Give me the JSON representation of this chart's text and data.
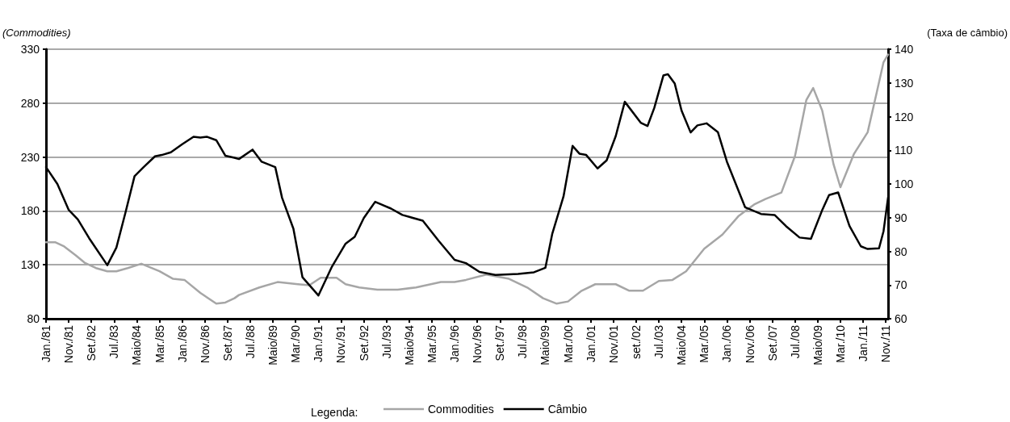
{
  "chart_data": {
    "type": "line",
    "ylabel": "(Commodities)",
    "y2label": "(Taxa de câmbio)",
    "legend_title": "Legenda:",
    "xlim": [
      "1981-01",
      "2011-12"
    ],
    "xticks": [
      {
        "value": "1981-01",
        "label": "Jan./81"
      },
      {
        "value": "1981-11",
        "label": "Nov./81"
      },
      {
        "value": "1982-09",
        "label": "Set./82"
      },
      {
        "value": "1983-07",
        "label": "Jul./83"
      },
      {
        "value": "1984-05",
        "label": "Maio/84"
      },
      {
        "value": "1985-03",
        "label": "Mar./85"
      },
      {
        "value": "1986-01",
        "label": "Jan./86"
      },
      {
        "value": "1986-11",
        "label": "Nov./86"
      },
      {
        "value": "1987-09",
        "label": "Set./87"
      },
      {
        "value": "1988-07",
        "label": "Jul./88"
      },
      {
        "value": "1989-05",
        "label": "Maio/89"
      },
      {
        "value": "1990-03",
        "label": "Mar./90"
      },
      {
        "value": "1991-01",
        "label": "Jan./91"
      },
      {
        "value": "1991-11",
        "label": "Nov./91"
      },
      {
        "value": "1992-09",
        "label": "Set./92"
      },
      {
        "value": "1993-07",
        "label": "Jul./93"
      },
      {
        "value": "1994-05",
        "label": "Maio/94"
      },
      {
        "value": "1995-03",
        "label": "Mar./95"
      },
      {
        "value": "1996-01",
        "label": "Jan./96"
      },
      {
        "value": "1996-11",
        "label": "Nov./96"
      },
      {
        "value": "1997-09",
        "label": "Set./97"
      },
      {
        "value": "1998-07",
        "label": "Jul./98"
      },
      {
        "value": "1999-05",
        "label": "Maio/99"
      },
      {
        "value": "2000-03",
        "label": "Mar./00"
      },
      {
        "value": "2001-01",
        "label": "Jan./01"
      },
      {
        "value": "2001-11",
        "label": "Nov./01"
      },
      {
        "value": "2002-09",
        "label": "set./02"
      },
      {
        "value": "2003-07",
        "label": "Jul./03"
      },
      {
        "value": "2004-05",
        "label": "Maio/04"
      },
      {
        "value": "2005-03",
        "label": "Mar./05"
      },
      {
        "value": "2006-01",
        "label": "Jan./06"
      },
      {
        "value": "2006-11",
        "label": "Nov./06"
      },
      {
        "value": "2007-09",
        "label": "Set./07"
      },
      {
        "value": "2008-07",
        "label": "Jul./08"
      },
      {
        "value": "2009-05",
        "label": "Maio/09"
      },
      {
        "value": "2010-03",
        "label": "Mar./10"
      },
      {
        "value": "2011-01",
        "label": "Jan./11"
      },
      {
        "value": "2011-11",
        "label": "Nov./11"
      }
    ],
    "ylim": [
      80,
      330
    ],
    "yticks": [
      80,
      130,
      180,
      230,
      280,
      330
    ],
    "y2lim": [
      60,
      140
    ],
    "y2ticks": [
      60,
      70,
      80,
      90,
      100,
      110,
      120,
      130,
      140
    ],
    "grid": "y",
    "legend": "bottom",
    "line_style": "solid",
    "series": [
      {
        "name": "Commodities",
        "color": "#a6a6a6",
        "x": [
          "1981-01",
          "1981-05",
          "1981-09",
          "1982-02",
          "1982-06",
          "1982-11",
          "1983-04",
          "1983-08",
          "1984-01",
          "1984-07",
          "1985-03",
          "1985-09",
          "1986-02",
          "1986-09",
          "1987-04",
          "1987-08",
          "1987-12",
          "1988-02",
          "1988-11",
          "1989-07",
          "1990-04",
          "1990-09",
          "1991-02",
          "1991-09",
          "1992-01",
          "1992-07",
          "1993-03",
          "1993-12",
          "1994-08",
          "1995-07",
          "1996-01",
          "1996-06",
          "1997-03",
          "1998-01",
          "1998-09",
          "1999-04",
          "1999-10",
          "2000-03",
          "2000-09",
          "2001-03",
          "2001-12",
          "2002-06",
          "2002-12",
          "2003-07",
          "2004-01",
          "2004-07",
          "2005-03",
          "2005-11",
          "2006-06",
          "2007-01",
          "2007-06",
          "2008-01",
          "2008-07",
          "2008-12",
          "2009-03",
          "2009-07",
          "2009-12",
          "2010-03",
          "2010-09",
          "2011-03",
          "2011-07",
          "2011-10",
          "2011-12"
        ],
        "values": [
          151,
          151,
          147,
          139,
          132,
          127,
          124,
          124,
          127,
          131,
          124,
          117,
          116,
          104,
          94,
          95,
          99,
          102,
          109,
          114,
          112,
          111,
          118,
          118,
          112,
          109,
          107,
          107,
          109,
          114,
          114,
          116,
          121,
          117,
          109,
          99,
          94,
          96,
          106,
          112,
          112,
          106,
          106,
          115,
          116,
          124,
          145,
          158,
          175,
          186,
          191,
          197,
          231,
          283,
          294,
          273,
          223,
          202,
          233,
          253,
          290,
          318,
          325
        ]
      },
      {
        "name": "Câmbio",
        "color": "#000000",
        "axis": "y2",
        "x": [
          "1981-01",
          "1981-06",
          "1981-11",
          "1982-03",
          "1982-08",
          "1983-04",
          "1983-08",
          "1983-12",
          "1984-04",
          "1984-08",
          "1985-01",
          "1985-04",
          "1985-08",
          "1986-01",
          "1986-06",
          "1986-09",
          "1986-12",
          "1987-04",
          "1987-08",
          "1987-12",
          "1988-02",
          "1988-08",
          "1988-12",
          "1989-06",
          "1989-09",
          "1990-02",
          "1990-06",
          "1991-01",
          "1991-07",
          "1992-01",
          "1992-05",
          "1992-09",
          "1993-02",
          "1993-09",
          "1994-02",
          "1994-11",
          "1995-06",
          "1996-01",
          "1996-06",
          "1996-12",
          "1997-07",
          "1998-05",
          "1998-12",
          "1999-05",
          "1999-08",
          "2000-01",
          "2000-05",
          "2000-08",
          "2000-11",
          "2001-04",
          "2001-08",
          "2001-12",
          "2002-04",
          "2002-11",
          "2003-02",
          "2003-05",
          "2003-09",
          "2003-11",
          "2004-02",
          "2004-05",
          "2004-09",
          "2004-12",
          "2005-04",
          "2005-09",
          "2006-01",
          "2006-09",
          "2007-04",
          "2007-10",
          "2008-03",
          "2008-09",
          "2009-02",
          "2009-07",
          "2009-10",
          "2010-02",
          "2010-07",
          "2010-12",
          "2011-03",
          "2011-08",
          "2011-10",
          "2011-12"
        ],
        "values": [
          105,
          100,
          92.3,
          89.5,
          83.9,
          75.9,
          81.1,
          91.5,
          102.3,
          105,
          108.2,
          108.6,
          109.4,
          111.8,
          114,
          113.8,
          114,
          113,
          108.4,
          107.8,
          107.4,
          110.2,
          106.6,
          105,
          95.9,
          86.7,
          72.3,
          66.9,
          75.5,
          82.3,
          84.3,
          89.9,
          94.7,
          92.7,
          90.8,
          89.1,
          83.1,
          77.5,
          76.5,
          73.9,
          73,
          73.3,
          73.8,
          75.1,
          85.1,
          96.3,
          111.3,
          109,
          108.6,
          104.6,
          107,
          114.2,
          124.4,
          118.2,
          117.2,
          122.6,
          132.2,
          132.6,
          129.8,
          121.8,
          115.3,
          117.4,
          118,
          115.4,
          106.6,
          93.1,
          91.1,
          90.8,
          87.5,
          84.1,
          83.7,
          92.3,
          96.7,
          97.5,
          87.5,
          81.5,
          80.7,
          80.9,
          86,
          96
        ]
      }
    ]
  }
}
